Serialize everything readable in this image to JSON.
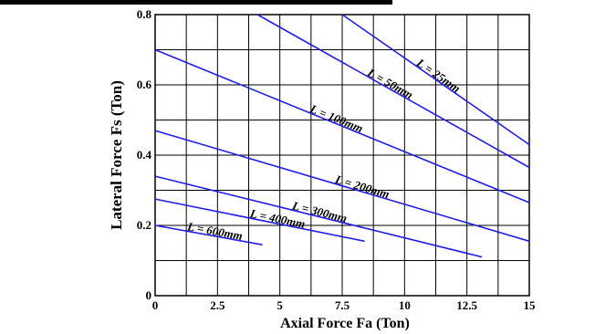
{
  "chart_data": {
    "type": "line",
    "title": "",
    "xlabel": "Axial Force Fa (Ton)",
    "ylabel": "Lateral Force Fs (Ton)",
    "xlim": [
      0,
      15
    ],
    "ylim": [
      0,
      0.8
    ],
    "xticks": [
      "0",
      "2.5",
      "5",
      "7.5",
      "10",
      "12.5",
      "15"
    ],
    "yticks": [
      "0",
      "0.2",
      "0.4",
      "0.6",
      "0.8"
    ],
    "grid": true,
    "line_color": "#1f1fe6",
    "series": [
      {
        "name": "L = 25mm",
        "x": [
          7.5,
          15
        ],
        "y": [
          0.8,
          0.43
        ]
      },
      {
        "name": "L = 50mm",
        "x": [
          4.1,
          15
        ],
        "y": [
          0.8,
          0.365
        ]
      },
      {
        "name": "L = 100mm",
        "x": [
          0,
          15
        ],
        "y": [
          0.7,
          0.265
        ]
      },
      {
        "name": "L = 200mm",
        "x": [
          0,
          15
        ],
        "y": [
          0.47,
          0.155
        ]
      },
      {
        "name": "L = 300mm",
        "x": [
          0,
          13.1
        ],
        "y": [
          0.34,
          0.11
        ]
      },
      {
        "name": "L = 400mm",
        "x": [
          0,
          8.4
        ],
        "y": [
          0.275,
          0.155
        ]
      },
      {
        "name": "L = 600mm",
        "x": [
          0,
          4.3
        ],
        "y": [
          0.2,
          0.145
        ]
      }
    ]
  }
}
